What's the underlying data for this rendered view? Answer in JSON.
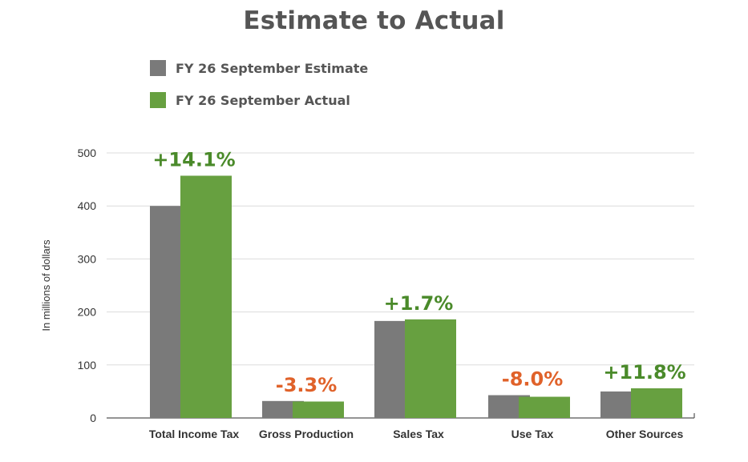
{
  "chart_data": {
    "type": "bar",
    "title": "Estimate to Actual",
    "xlabel": "",
    "ylabel": "In millions of dollars",
    "ylim": [
      0,
      500
    ],
    "yticks": [
      0,
      100,
      200,
      300,
      400,
      500
    ],
    "grid": true,
    "legend_position": "top-left",
    "categories": [
      "Total Income Tax",
      "Gross Production",
      "Sales Tax",
      "Use Tax",
      "Other Sources"
    ],
    "series": [
      {
        "name": "FY 26 September Estimate",
        "color": "#7a7a7a",
        "values": [
          400,
          32,
          183,
          43,
          50
        ]
      },
      {
        "name": "FY 26 September Actual",
        "color": "#67a040",
        "values": [
          457,
          31,
          186,
          40,
          56
        ]
      }
    ],
    "annotations": [
      "+14.1%",
      "-3.3%",
      "+1.7%",
      "-8.0%",
      "+11.8%"
    ],
    "annotation_colors": {
      "positive": "#4a8a2a",
      "negative": "#e0622a"
    }
  }
}
